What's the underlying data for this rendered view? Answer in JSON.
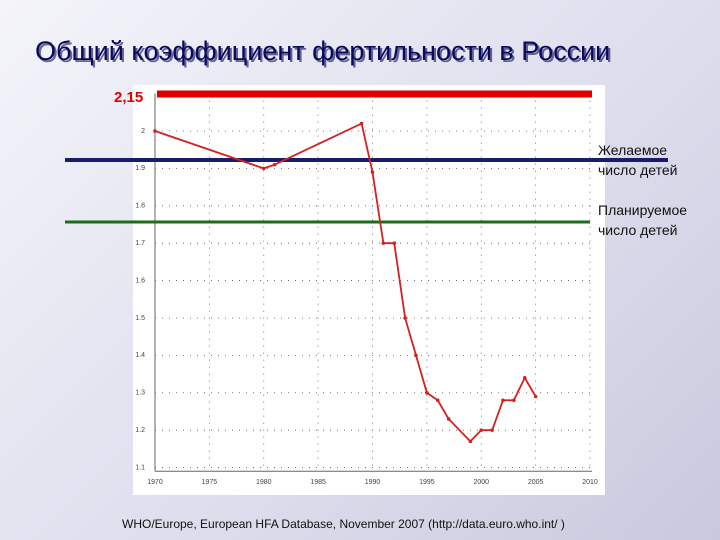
{
  "chart_data": {
    "type": "line",
    "title": "Общий коэффициент фертильности в России",
    "red_line_label": "2,15",
    "desired_label": [
      "Желаемое",
      "число детей"
    ],
    "planned_label": [
      "Планируемое",
      "число детей"
    ],
    "source": "WHO/Europe, European HFA Database, November 2007 (http://data.euro.who.int/ )",
    "x": [
      1970,
      1980,
      1981,
      1989,
      1990,
      1991,
      1992,
      1993,
      1994,
      1995,
      1996,
      1997,
      1999,
      2000,
      2001,
      2002,
      2003,
      2004,
      2005
    ],
    "series": [
      {
        "color": "#d42020",
        "values": [
          2.0,
          1.9,
          1.91,
          2.02,
          1.89,
          1.7,
          1.7,
          1.5,
          1.4,
          1.3,
          1.28,
          1.23,
          1.17,
          1.2,
          1.2,
          1.28,
          1.28,
          1.34,
          1.29
        ]
      }
    ],
    "xlim": [
      1970,
      2010
    ],
    "xticks": [
      1970,
      1975,
      1980,
      1985,
      1990,
      1995,
      2000,
      2005,
      2010
    ],
    "ylim": [
      1.09,
      2.1
    ],
    "yticks": [
      1.1,
      1.2,
      1.3,
      1.4,
      1.5,
      1.6,
      1.7,
      1.8,
      1.9,
      2
    ],
    "grid": true
  }
}
